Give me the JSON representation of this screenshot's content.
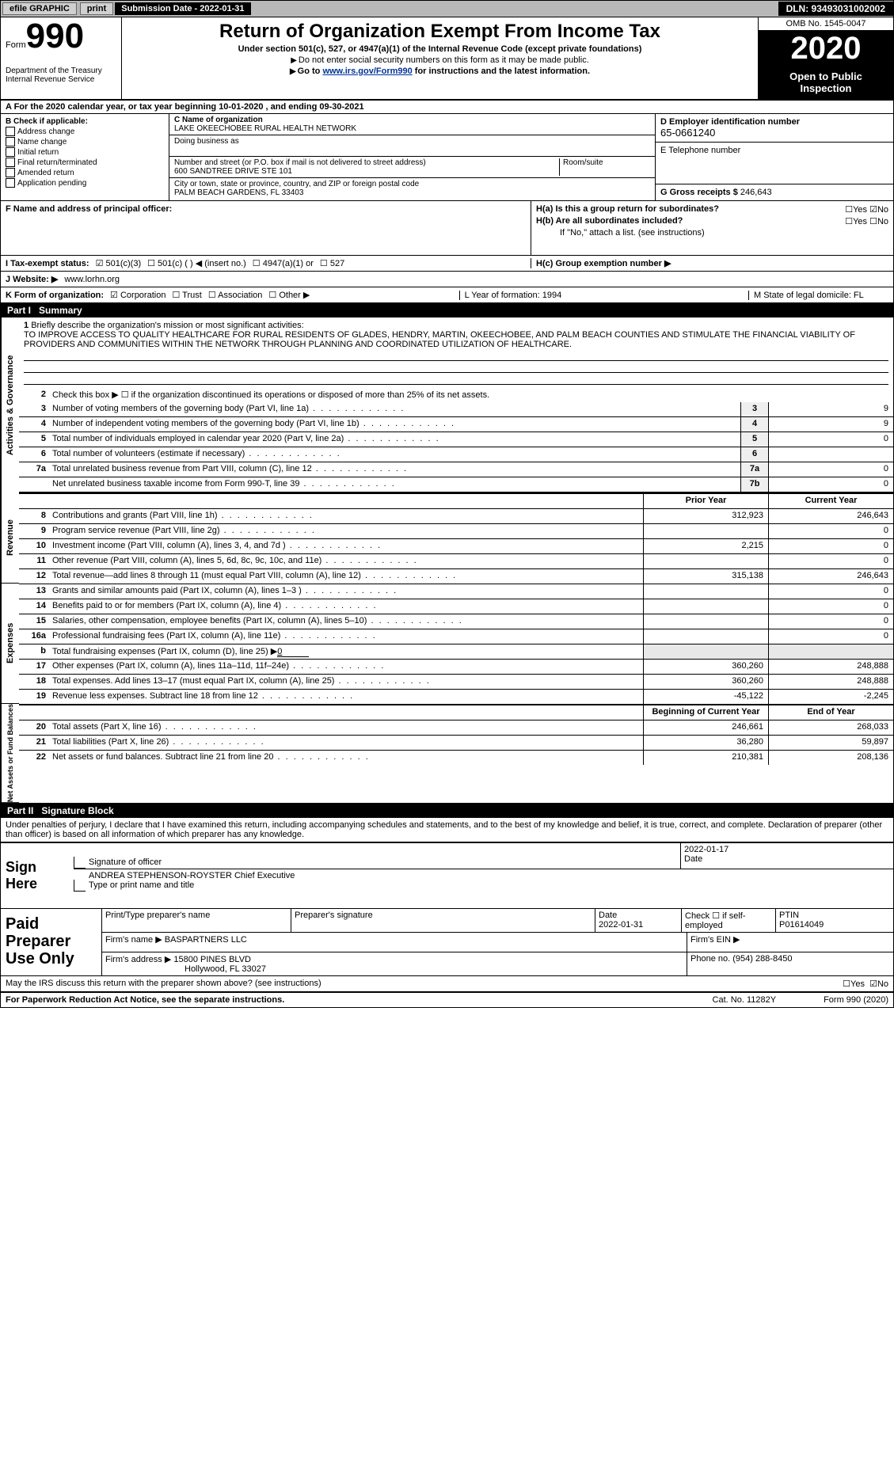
{
  "topbar": {
    "efile": "efile GRAPHIC",
    "print": "print",
    "submission": "Submission Date - 2022-01-31",
    "dln": "DLN: 93493031002002"
  },
  "header": {
    "form_word": "Form",
    "form_num": "990",
    "dept": "Department of the Treasury\nInternal Revenue Service",
    "title": "Return of Organization Exempt From Income Tax",
    "sub1": "Under section 501(c), 527, or 4947(a)(1) of the Internal Revenue Code (except private foundations)",
    "sub2": "Do not enter social security numbers on this form as it may be made public.",
    "sub3_a": "Go to ",
    "sub3_link": "www.irs.gov/Form990",
    "sub3_b": " for instructions and the latest information.",
    "omb": "OMB No. 1545-0047",
    "year": "2020",
    "open": "Open to Public Inspection"
  },
  "rowA": "A For the 2020 calendar year, or tax year beginning 10-01-2020       , and ending 09-30-2021",
  "boxB": {
    "title": "B Check if applicable:",
    "items": [
      "Address change",
      "Name change",
      "Initial return",
      "Final return/terminated",
      "Amended return",
      "Application pending"
    ]
  },
  "boxC": {
    "name_lbl": "C Name of organization",
    "name": "LAKE OKEECHOBEE RURAL HEALTH NETWORK",
    "dba_lbl": "Doing business as",
    "street_lbl": "Number and street (or P.O. box if mail is not delivered to street address)",
    "street": "600 SANDTREE DRIVE STE 101",
    "room_lbl": "Room/suite",
    "city_lbl": "City or town, state or province, country, and ZIP or foreign postal code",
    "city": "PALM BEACH GARDENS, FL  33403"
  },
  "boxD": {
    "ein_lbl": "D Employer identification number",
    "ein": "65-0661240",
    "phone_lbl": "E Telephone number",
    "gross_lbl": "G Gross receipts $",
    "gross": "246,643"
  },
  "boxF": "F  Name and address of principal officer:",
  "boxH": {
    "ha": "H(a)  Is this a group return for subordinates?",
    "hb": "H(b)  Are all subordinates included?",
    "hb2": "If \"No,\" attach a list. (see instructions)",
    "hc": "H(c)  Group exemption number ▶",
    "yes": "Yes",
    "no": "No"
  },
  "rowI": {
    "label": "I   Tax-exempt status:",
    "opts": [
      "501(c)(3)",
      "501(c) (  ) ◀ (insert no.)",
      "4947(a)(1) or",
      "527"
    ]
  },
  "rowJ": {
    "label": "J   Website: ▶",
    "val": "www.lorhn.org"
  },
  "rowK": {
    "label": "K Form of organization:",
    "opts": [
      "Corporation",
      "Trust",
      "Association",
      "Other ▶"
    ],
    "year": "L Year of formation: 1994",
    "state": "M State of legal domicile: FL"
  },
  "part1": {
    "label": "Part I",
    "title": "Summary"
  },
  "briefly": {
    "num": "1",
    "lead": "Briefly describe the organization's mission or most significant activities:",
    "text": "TO IMPROVE ACCESS TO QUALITY HEALTHCARE FOR RURAL RESIDENTS OF GLADES, HENDRY, MARTIN, OKEECHOBEE, AND PALM BEACH COUNTIES AND STIMULATE THE FINANCIAL VIABILITY OF PROVIDERS AND COMMUNITIES WITHIN THE NETWORK THROUGH PLANNING AND COORDINATED UTILIZATION OF HEALTHCARE."
  },
  "gov": {
    "l2": "Check this box ▶ ☐ if the organization discontinued its operations or disposed of more than 25% of its net assets.",
    "rows": [
      {
        "n": "3",
        "t": "Number of voting members of the governing body (Part VI, line 1a)",
        "r": "3",
        "v": "9"
      },
      {
        "n": "4",
        "t": "Number of independent voting members of the governing body (Part VI, line 1b)",
        "r": "4",
        "v": "9"
      },
      {
        "n": "5",
        "t": "Total number of individuals employed in calendar year 2020 (Part V, line 2a)",
        "r": "5",
        "v": "0"
      },
      {
        "n": "6",
        "t": "Total number of volunteers (estimate if necessary)",
        "r": "6",
        "v": ""
      },
      {
        "n": "7a",
        "t": "Total unrelated business revenue from Part VIII, column (C), line 12",
        "r": "7a",
        "v": "0"
      },
      {
        "n": "",
        "t": "Net unrelated business taxable income from Form 990-T, line 39",
        "r": "7b",
        "v": "0"
      }
    ]
  },
  "yearhdr": {
    "prior": "Prior Year",
    "current": "Current Year"
  },
  "revenue": [
    {
      "n": "8",
      "t": "Contributions and grants (Part VIII, line 1h)",
      "p": "312,923",
      "c": "246,643"
    },
    {
      "n": "9",
      "t": "Program service revenue (Part VIII, line 2g)",
      "p": "",
      "c": "0"
    },
    {
      "n": "10",
      "t": "Investment income (Part VIII, column (A), lines 3, 4, and 7d )",
      "p": "2,215",
      "c": "0"
    },
    {
      "n": "11",
      "t": "Other revenue (Part VIII, column (A), lines 5, 6d, 8c, 9c, 10c, and 11e)",
      "p": "",
      "c": "0"
    },
    {
      "n": "12",
      "t": "Total revenue—add lines 8 through 11 (must equal Part VIII, column (A), line 12)",
      "p": "315,138",
      "c": "246,643"
    }
  ],
  "expenses": [
    {
      "n": "13",
      "t": "Grants and similar amounts paid (Part IX, column (A), lines 1–3 )",
      "p": "",
      "c": "0"
    },
    {
      "n": "14",
      "t": "Benefits paid to or for members (Part IX, column (A), line 4)",
      "p": "",
      "c": "0"
    },
    {
      "n": "15",
      "t": "Salaries, other compensation, employee benefits (Part IX, column (A), lines 5–10)",
      "p": "",
      "c": "0"
    },
    {
      "n": "16a",
      "t": "Professional fundraising fees (Part IX, column (A), line 11e)",
      "p": "",
      "c": "0"
    }
  ],
  "exp_b": {
    "n": "b",
    "t": "Total fundraising expenses (Part IX, column (D), line 25) ▶",
    "v": "0"
  },
  "expenses2": [
    {
      "n": "17",
      "t": "Other expenses (Part IX, column (A), lines 11a–11d, 11f–24e)",
      "p": "360,260",
      "c": "248,888"
    },
    {
      "n": "18",
      "t": "Total expenses. Add lines 13–17 (must equal Part IX, column (A), line 25)",
      "p": "360,260",
      "c": "248,888"
    },
    {
      "n": "19",
      "t": "Revenue less expenses. Subtract line 18 from line 12",
      "p": "-45,122",
      "c": "-2,245"
    }
  ],
  "nethdr": {
    "beg": "Beginning of Current Year",
    "end": "End of Year"
  },
  "net": [
    {
      "n": "20",
      "t": "Total assets (Part X, line 16)",
      "p": "246,661",
      "c": "268,033"
    },
    {
      "n": "21",
      "t": "Total liabilities (Part X, line 26)",
      "p": "36,280",
      "c": "59,897"
    },
    {
      "n": "22",
      "t": "Net assets or fund balances. Subtract line 21 from line 20",
      "p": "210,381",
      "c": "208,136"
    }
  ],
  "part2": {
    "label": "Part II",
    "title": "Signature Block"
  },
  "penalties": "Under penalties of perjury, I declare that I have examined this return, including accompanying schedules and statements, and to the best of my knowledge and belief, it is true, correct, and complete. Declaration of preparer (other than officer) is based on all information of which preparer has any knowledge.",
  "sign": {
    "label": "Sign Here",
    "sig_lbl": "Signature of officer",
    "date": "2022-01-17",
    "date_lbl": "Date",
    "name": "ANDREA STEPHENSON-ROYSTER Chief Executive",
    "name_lbl": "Type or print name and title"
  },
  "paid": {
    "label": "Paid Preparer Use Only",
    "r1": {
      "a": "Print/Type preparer's name",
      "b": "Preparer's signature",
      "c": "Date",
      "cv": "2022-01-31",
      "d": "Check ☐ if self-employed",
      "e": "PTIN",
      "ev": "P01614049"
    },
    "r2": {
      "a": "Firm's name    ▶",
      "av": "BASPARTNERS LLC",
      "b": "Firm's EIN ▶"
    },
    "r3": {
      "a": "Firm's address ▶",
      "av1": "15800 PINES BLVD",
      "av2": "Hollywood, FL  33027",
      "b": "Phone no. (954) 288-8450"
    }
  },
  "discuss": "May the IRS discuss this return with the preparer shown above? (see instructions)",
  "paperwork": "For Paperwork Reduction Act Notice, see the separate instructions.",
  "cat": "Cat. No. 11282Y",
  "formfoot": "Form 990 (2020)",
  "vlabels": {
    "gov": "Activities & Governance",
    "rev": "Revenue",
    "exp": "Expenses",
    "net": "Net Assets or Fund Balances"
  }
}
